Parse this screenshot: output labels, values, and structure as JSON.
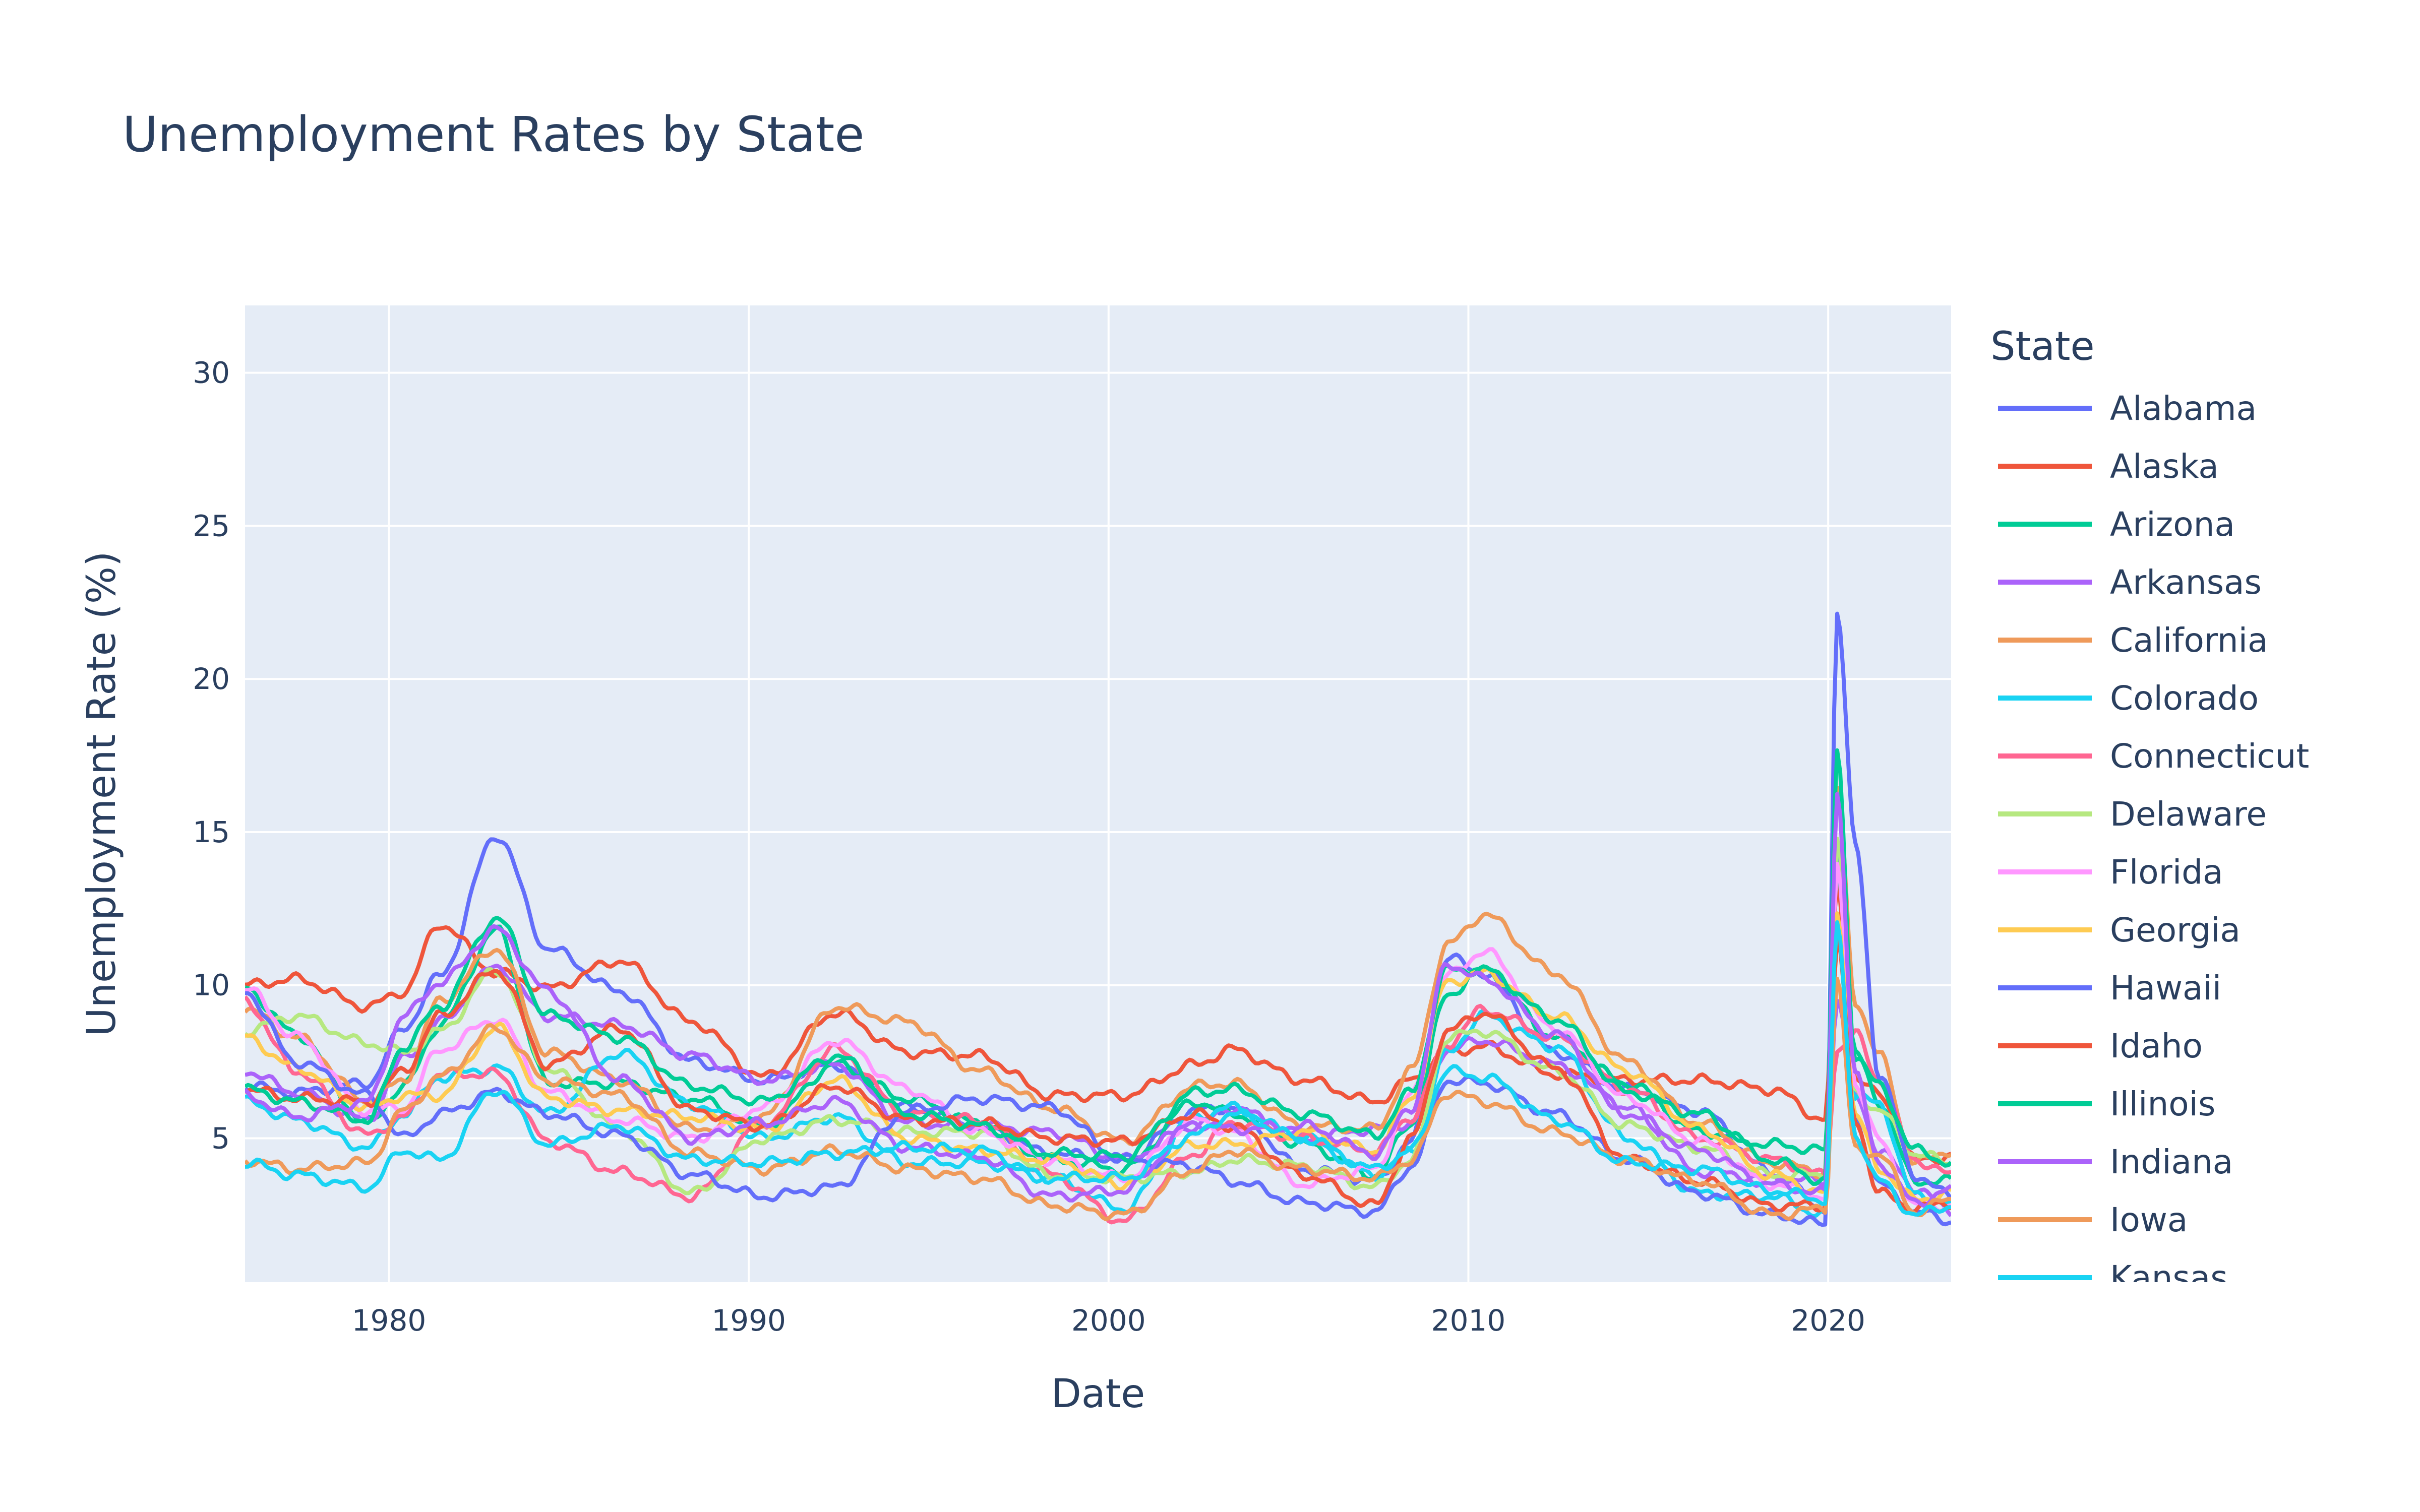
{
  "chart_data": {
    "type": "line",
    "title": "Unemployment Rates by State",
    "xlabel": "Date",
    "ylabel": "Unemployment Rate (%)",
    "x_range": [
      "1976-01",
      "2023-06"
    ],
    "x_ticks": [
      {
        "value": "1980-01",
        "label": "1980"
      },
      {
        "value": "1990-01",
        "label": "1990"
      },
      {
        "value": "2000-01",
        "label": "2000"
      },
      {
        "value": "2010-01",
        "label": "2010"
      },
      {
        "value": "2020-01",
        "label": "2020"
      }
    ],
    "ylim": [
      0.3,
      32.2
    ],
    "y_ticks": [
      5,
      10,
      15,
      20,
      25,
      30
    ],
    "grid": true,
    "plot_bg": "#e5ecf6",
    "legend": {
      "title": "State",
      "placement": "right"
    },
    "key_dates": [
      "1976-01",
      "1977-06",
      "1979-06",
      "1980-06",
      "1981-06",
      "1983-01",
      "1984-06",
      "1986-06",
      "1988-06",
      "1990-06",
      "1992-06",
      "1994-06",
      "1996-06",
      "1998-06",
      "2000-06",
      "2002-06",
      "2003-06",
      "2005-06",
      "2007-06",
      "2008-06",
      "2009-06",
      "2010-06",
      "2012-06",
      "2014-06",
      "2016-06",
      "2018-06",
      "2019-12",
      "2020-04",
      "2020-10",
      "2021-06",
      "2022-06",
      "2023-06"
    ],
    "series": [
      {
        "name": "Alabama",
        "color": "#636efa",
        "values": [
          6.7,
          6.5,
          6.8,
          8.6,
          10.3,
          14.9,
          11.2,
          9.8,
          7.5,
          6.9,
          7.4,
          6.0,
          5.4,
          4.5,
          4.3,
          5.9,
          6.0,
          4.0,
          3.6,
          4.9,
          10.9,
          10.4,
          7.8,
          6.6,
          5.9,
          3.9,
          2.7,
          14.1,
          5.6,
          3.5,
          2.6,
          2.3
        ]
      },
      {
        "name": "Alaska",
        "color": "#ef553b",
        "values": [
          10.0,
          10.2,
          9.3,
          9.8,
          12.0,
          10.4,
          9.9,
          10.8,
          8.8,
          7.0,
          9.1,
          7.8,
          7.7,
          6.4,
          6.4,
          7.4,
          7.9,
          6.9,
          6.2,
          6.9,
          7.8,
          8.0,
          7.1,
          6.9,
          6.9,
          6.6,
          5.6,
          13.2,
          7.0,
          6.4,
          4.3,
          4.4
        ]
      },
      {
        "name": "Arizona",
        "color": "#00cc96",
        "values": [
          9.9,
          8.4,
          5.5,
          6.7,
          8.7,
          11.8,
          6.8,
          6.8,
          6.3,
          5.4,
          7.4,
          6.3,
          5.5,
          4.3,
          4.0,
          6.2,
          5.8,
          4.8,
          3.8,
          5.5,
          9.7,
          10.5,
          8.3,
          6.8,
          5.2,
          4.8,
          4.6,
          13.9,
          7.8,
          6.2,
          3.6,
          3.6
        ]
      },
      {
        "name": "Arkansas",
        "color": "#ab63fa",
        "values": [
          7.2,
          6.5,
          5.6,
          7.6,
          8.8,
          10.6,
          9.0,
          8.7,
          7.7,
          6.9,
          7.4,
          5.5,
          5.4,
          5.2,
          4.3,
          5.4,
          6.0,
          5.0,
          5.3,
          5.5,
          7.9,
          8.2,
          7.4,
          6.0,
          3.9,
          3.7,
          3.6,
          9.6,
          6.4,
          4.6,
          3.4,
          2.6
        ]
      },
      {
        "name": "California",
        "color": "#ef9a5a",
        "values": [
          9.2,
          8.3,
          6.2,
          6.9,
          9.5,
          11.2,
          7.8,
          6.9,
          5.3,
          5.7,
          9.3,
          8.8,
          7.2,
          6.0,
          4.9,
          6.7,
          6.8,
          5.4,
          5.3,
          7.2,
          11.3,
          12.3,
          10.4,
          7.5,
          5.5,
          4.2,
          3.9,
          16.4,
          9.5,
          7.7,
          4.2,
          4.6
        ]
      },
      {
        "name": "Colorado",
        "color": "#19d3f3",
        "values": [
          6.2,
          5.6,
          4.7,
          5.8,
          7.0,
          7.3,
          5.8,
          7.8,
          6.1,
          5.0,
          5.7,
          4.2,
          4.2,
          3.7,
          2.7,
          5.7,
          6.0,
          5.0,
          3.8,
          4.6,
          7.8,
          9.0,
          8.0,
          5.0,
          3.2,
          3.1,
          2.5,
          11.6,
          6.4,
          6.1,
          3.1,
          2.9
        ]
      },
      {
        "name": "Connecticut",
        "color": "#ff6692",
        "values": [
          9.5,
          7.2,
          5.1,
          5.7,
          7.1,
          7.1,
          4.9,
          3.9,
          3.1,
          5.5,
          7.9,
          5.8,
          5.6,
          3.8,
          2.3,
          4.5,
          5.5,
          5.0,
          4.6,
          5.7,
          8.1,
          9.2,
          8.3,
          6.6,
          5.0,
          4.3,
          3.8,
          7.9,
          8.4,
          6.9,
          4.3,
          3.8
        ]
      },
      {
        "name": "Delaware",
        "color": "#b6e880",
        "values": [
          8.5,
          9.0,
          8.1,
          7.8,
          8.5,
          10.5,
          7.3,
          5.3,
          3.2,
          5.0,
          5.6,
          5.2,
          5.2,
          3.8,
          3.7,
          3.9,
          4.3,
          4.1,
          3.4,
          4.3,
          8.3,
          8.5,
          7.2,
          5.4,
          4.7,
          3.8,
          3.8,
          14.7,
          6.5,
          5.9,
          4.5,
          4.2
        ]
      },
      {
        "name": "Florida",
        "color": "#ff97ff",
        "values": [
          9.9,
          8.3,
          5.9,
          6.0,
          7.9,
          8.9,
          6.5,
          5.6,
          5.0,
          6.0,
          8.2,
          6.6,
          5.2,
          4.3,
          3.7,
          5.6,
          5.2,
          3.5,
          4.0,
          6.4,
          10.3,
          11.1,
          8.6,
          6.3,
          4.9,
          3.5,
          3.1,
          13.8,
          6.8,
          4.9,
          2.8,
          2.8
        ]
      },
      {
        "name": "Georgia",
        "color": "#fecb52",
        "values": [
          8.3,
          7.3,
          6.0,
          6.4,
          6.4,
          8.6,
          6.3,
          5.9,
          5.7,
          5.3,
          6.9,
          5.0,
          4.6,
          4.3,
          3.5,
          4.8,
          4.8,
          5.2,
          4.6,
          6.3,
          10.1,
          10.4,
          9.0,
          7.2,
          5.3,
          3.8,
          3.2,
          12.4,
          5.8,
          4.0,
          3.0,
          3.2
        ]
      },
      {
        "name": "Hawaii",
        "color": "#636efa",
        "values": [
          9.8,
          7.5,
          6.4,
          5.0,
          5.8,
          6.5,
          5.8,
          5.1,
          3.8,
          3.1,
          3.4,
          5.9,
          6.3,
          6.0,
          4.3,
          4.1,
          3.6,
          2.9,
          2.6,
          4.1,
          6.9,
          6.8,
          5.8,
          4.3,
          3.2,
          2.5,
          2.2,
          22.3,
          14.6,
          7.1,
          3.8,
          3.1
        ]
      },
      {
        "name": "Idaho",
        "color": "#ef553b",
        "values": [
          6.6,
          6.3,
          6.2,
          7.2,
          9.0,
          10.5,
          7.4,
          8.6,
          5.9,
          5.4,
          6.7,
          5.6,
          5.5,
          5.0,
          4.9,
          5.8,
          5.4,
          3.8,
          2.8,
          5.0,
          8.5,
          9.1,
          7.3,
          4.3,
          3.6,
          2.8,
          2.8,
          11.5,
          5.6,
          3.2,
          2.7,
          2.9
        ]
      },
      {
        "name": "Illinois",
        "color": "#00cc96",
        "values": [
          6.6,
          6.2,
          5.6,
          8.0,
          9.3,
          12.2,
          9.0,
          8.3,
          6.7,
          6.2,
          7.7,
          5.8,
          5.4,
          4.5,
          4.4,
          6.5,
          6.6,
          5.8,
          5.1,
          6.5,
          10.5,
          10.5,
          8.9,
          6.5,
          5.8,
          4.3,
          3.6,
          17.6,
          7.7,
          6.7,
          4.6,
          4.2
        ]
      },
      {
        "name": "Indiana",
        "color": "#ab63fa",
        "values": [
          6.4,
          5.7,
          6.2,
          9.0,
          10.1,
          11.8,
          9.8,
          6.9,
          5.0,
          5.5,
          6.2,
          4.7,
          4.4,
          3.1,
          3.3,
          5.5,
          5.3,
          5.4,
          4.5,
          6.0,
          10.7,
          10.2,
          8.4,
          5.8,
          4.6,
          3.5,
          3.2,
          16.3,
          7.1,
          4.2,
          2.9,
          3.3
        ]
      },
      {
        "name": "Iowa",
        "color": "#ef9a5a",
        "values": [
          4.3,
          4.0,
          4.2,
          5.9,
          7.0,
          8.6,
          6.9,
          6.4,
          4.5,
          4.0,
          4.6,
          4.0,
          3.7,
          2.8,
          2.5,
          4.0,
          4.6,
          4.0,
          3.7,
          4.3,
          6.5,
          6.2,
          5.2,
          4.3,
          3.6,
          2.5,
          2.7,
          10.2,
          4.6,
          4.5,
          2.6,
          3.0
        ]
      },
      {
        "name": "Kansas",
        "color": "#19d3f3",
        "values": [
          4.2,
          3.8,
          3.4,
          4.6,
          4.3,
          6.6,
          4.8,
          5.4,
          4.3,
          4.2,
          4.5,
          4.7,
          4.6,
          3.7,
          3.7,
          5.1,
          5.8,
          5.0,
          4.0,
          4.6,
          7.2,
          7.0,
          5.6,
          4.2,
          4.0,
          3.3,
          3.0,
          11.9,
          5.1,
          3.6,
          2.5,
          2.8
        ]
      }
    ]
  },
  "legend_visible_names": [
    "Alabama",
    "Alaska",
    "Arizona",
    "Arkansas",
    "California",
    "Colorado",
    "Connecticut",
    "Delaware",
    "Florida",
    "Georgia",
    "Hawaii",
    "Idaho",
    "Illinois",
    "Indiana",
    "Iowa",
    "Kansas"
  ]
}
